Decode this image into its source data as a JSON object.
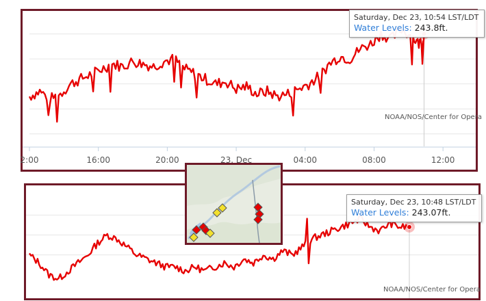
{
  "top_chart": {
    "tooltip": {
      "header": "Saturday, Dec 23, 10:54 LST/LDT",
      "series_name": "Water Levels",
      "value": "243.8ft."
    },
    "credit": "NOAA/NOS/Center for Opera",
    "colors": {
      "line": "#e60000",
      "frame": "#6e1a28",
      "grid": "#e6e6e6"
    }
  },
  "bottom_chart": {
    "tooltip": {
      "header": "Saturday, Dec 23, 10:48 LST/LDT",
      "series_name": "Water Levels",
      "value": "243.07ft."
    },
    "credit": "NOAA/NOS/Center for Opera",
    "colors": {
      "line": "#e60000",
      "frame": "#6e1a28"
    }
  },
  "map_inset": {
    "stations": [
      {
        "color": "#e60000"
      },
      {
        "color": "#e60000"
      },
      {
        "color": "#e60000"
      },
      {
        "color": "#e60000"
      },
      {
        "color": "#e60000"
      },
      {
        "color": "#e60000"
      },
      {
        "color": "#f2e02e"
      },
      {
        "color": "#f2e02e"
      },
      {
        "color": "#f2e02e"
      },
      {
        "color": "#f2e02e"
      }
    ]
  },
  "chart_data": [
    {
      "type": "line",
      "x_unit": "hour",
      "xticks": [
        "2:00",
        "16:00",
        "20:00",
        "23. Dec",
        "04:00",
        "08:00",
        "12:00"
      ],
      "xtick_values": [
        12,
        16,
        20,
        24,
        28,
        32,
        36
      ],
      "xlim": [
        12,
        37.9
      ],
      "ylim": [
        243.35,
        243.87
      ],
      "y_gridlines": [
        243.4,
        243.5,
        243.6,
        243.7,
        243.8
      ],
      "series": [
        {
          "x": [
            12.0,
            12.6,
            13.2,
            13.8,
            14.4,
            15.0,
            15.6,
            16.2,
            16.8,
            17.4,
            18.0,
            18.6,
            19.2,
            19.8,
            20.4,
            21.0,
            21.6,
            22.2,
            22.8,
            23.4,
            24.0,
            24.6,
            25.2,
            25.8,
            26.4,
            27.0,
            27.6,
            28.2,
            28.8,
            29.4,
            30.0,
            30.6,
            31.2,
            31.8,
            32.4,
            33.0,
            33.6,
            34.2,
            34.6,
            34.9
          ],
          "y": [
            243.55,
            243.57,
            243.54,
            243.56,
            243.6,
            243.62,
            243.64,
            243.66,
            243.68,
            243.67,
            243.69,
            243.68,
            243.67,
            243.69,
            243.7,
            243.66,
            243.64,
            243.62,
            243.6,
            243.61,
            243.58,
            243.59,
            243.56,
            243.57,
            243.55,
            243.56,
            243.58,
            243.6,
            243.63,
            243.68,
            243.71,
            243.7,
            243.74,
            243.76,
            243.8,
            243.78,
            243.82,
            243.79,
            243.76,
            243.8
          ]
        }
      ]
    },
    {
      "type": "line",
      "series": [
        {
          "x": [
            0,
            1,
            2,
            3,
            4,
            5,
            6,
            7,
            8,
            9,
            10,
            11,
            12,
            13,
            14,
            15,
            16,
            17,
            18,
            19,
            20,
            21,
            22,
            23,
            24,
            25,
            26,
            27,
            28,
            29,
            30,
            31,
            32,
            33,
            34,
            35,
            36,
            37,
            38,
            39
          ],
          "y": [
            243.0,
            242.98,
            242.95,
            242.94,
            242.96,
            242.98,
            243.0,
            243.03,
            243.05,
            243.04,
            243.02,
            243.0,
            242.99,
            242.98,
            242.97,
            242.97,
            242.96,
            242.97,
            242.96,
            242.97,
            242.98,
            242.97,
            242.99,
            242.98,
            243.0,
            242.99,
            243.01,
            243.0,
            243.02,
            243.04,
            243.05,
            243.06,
            243.07,
            243.08,
            243.09,
            243.07,
            243.06,
            243.08,
            243.07,
            243.07
          ]
        }
      ]
    }
  ]
}
